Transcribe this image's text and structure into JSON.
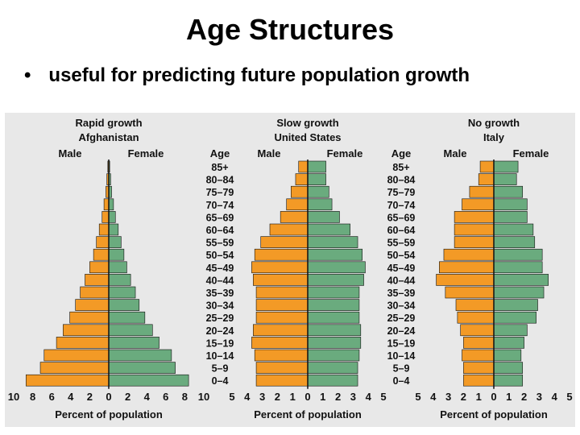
{
  "title": "Age Structures",
  "bullet": {
    "symbol": "•",
    "text": "useful for predicting future population growth"
  },
  "colors": {
    "male": "#f39a26",
    "female": "#6aab7e",
    "panel": "#e8e8e8",
    "bar_stroke": "#111111"
  },
  "chart_data": [
    {
      "type": "bar",
      "title": "Rapid growth",
      "subtitle": "Afghanistan",
      "male_label": "Male",
      "female_label": "Female",
      "age_header": "",
      "xlabel": "Percent of population",
      "xlim": [
        -10,
        10
      ],
      "tick_labels": [
        "10",
        "8",
        "6",
        "4",
        "2",
        "0",
        "2",
        "4",
        "6",
        "8",
        "10"
      ],
      "categories": [
        "85+",
        "80–84",
        "75–79",
        "70–74",
        "65–69",
        "60–64",
        "55–59",
        "50–54",
        "45–49",
        "40–44",
        "35–39",
        "30–34",
        "25–29",
        "20–24",
        "15–19",
        "10–14",
        "5–9",
        "0–4"
      ],
      "series": [
        {
          "name": "Male",
          "values": [
            0.1,
            0.2,
            0.3,
            0.5,
            0.7,
            1.0,
            1.3,
            1.6,
            2.0,
            2.5,
            3.0,
            3.5,
            4.1,
            4.8,
            5.5,
            6.8,
            7.2,
            8.7
          ]
        },
        {
          "name": "Female",
          "values": [
            0.1,
            0.2,
            0.3,
            0.5,
            0.7,
            1.0,
            1.3,
            1.6,
            1.9,
            2.3,
            2.8,
            3.2,
            3.8,
            4.6,
            5.3,
            6.6,
            7.0,
            8.4
          ]
        }
      ]
    },
    {
      "type": "bar",
      "title": "Slow growth",
      "subtitle": "United States",
      "male_label": "Male",
      "female_label": "Female",
      "age_header": "Age",
      "xlabel": "Percent of population",
      "xlim": [
        -5,
        5
      ],
      "tick_labels": [
        "5",
        "4",
        "3",
        "2",
        "1",
        "0",
        "1",
        "2",
        "3",
        "4",
        "5"
      ],
      "categories": [
        "85+",
        "80–84",
        "75–79",
        "70–74",
        "65–69",
        "60–64",
        "55–59",
        "50–54",
        "45–49",
        "40–44",
        "35–39",
        "30–34",
        "25–29",
        "20–24",
        "15–19",
        "10–14",
        "5–9",
        "0–4"
      ],
      "series": [
        {
          "name": "Male",
          "values": [
            0.6,
            0.8,
            1.1,
            1.4,
            1.8,
            2.5,
            3.1,
            3.5,
            3.7,
            3.6,
            3.4,
            3.4,
            3.4,
            3.6,
            3.7,
            3.5,
            3.4,
            3.4
          ]
        },
        {
          "name": "Female",
          "values": [
            1.2,
            1.2,
            1.4,
            1.6,
            2.1,
            2.8,
            3.3,
            3.6,
            3.8,
            3.7,
            3.4,
            3.4,
            3.4,
            3.5,
            3.5,
            3.4,
            3.3,
            3.3
          ]
        }
      ]
    },
    {
      "type": "bar",
      "title": "No growth",
      "subtitle": "Italy",
      "male_label": "Male",
      "female_label": "Female",
      "age_header": "Age",
      "xlabel": "Percent of population",
      "xlim": [
        -5,
        5
      ],
      "tick_labels": [
        "5",
        "4",
        "3",
        "2",
        "1",
        "0",
        "1",
        "2",
        "3",
        "4",
        "5"
      ],
      "categories": [
        "85+",
        "80–84",
        "75–79",
        "70–74",
        "65–69",
        "60–64",
        "55–59",
        "50–54",
        "45–49",
        "40–44",
        "35–39",
        "30–34",
        "25–29",
        "20–24",
        "15–19",
        "10–14",
        "5–9",
        "0–4"
      ],
      "series": [
        {
          "name": "Male",
          "values": [
            0.9,
            1.0,
            1.6,
            2.1,
            2.6,
            2.6,
            2.6,
            3.3,
            3.6,
            3.8,
            3.2,
            2.5,
            2.4,
            2.2,
            2.0,
            2.1,
            2.0,
            2.0
          ]
        },
        {
          "name": "Female",
          "values": [
            1.6,
            1.5,
            1.9,
            2.2,
            2.2,
            2.6,
            2.7,
            3.2,
            3.2,
            3.6,
            3.3,
            2.9,
            2.8,
            2.2,
            2.0,
            1.8,
            1.9,
            1.9
          ]
        }
      ]
    }
  ]
}
